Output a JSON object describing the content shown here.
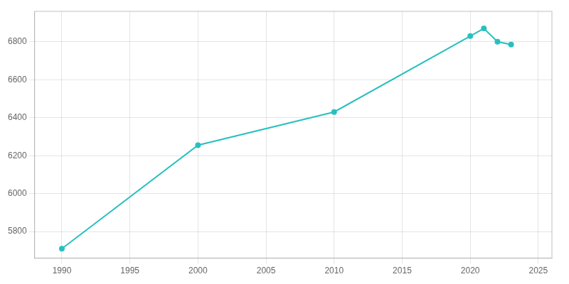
{
  "chart_data": {
    "type": "line",
    "x": [
      1990,
      2000,
      2010,
      2020,
      2021,
      2022,
      2023
    ],
    "series": [
      {
        "values": [
          5710,
          6255,
          6430,
          6830,
          6870,
          6800,
          6785
        ],
        "color": "#2abfbf",
        "marker": "circle"
      }
    ],
    "xlim": [
      1988,
      2026
    ],
    "xticks": [
      1990,
      1995,
      2000,
      2005,
      2010,
      2015,
      2020,
      2025
    ],
    "ylim": [
      5660,
      6960
    ],
    "yticks": [
      5800,
      6000,
      6200,
      6400,
      6600,
      6800
    ],
    "grid": true
  }
}
